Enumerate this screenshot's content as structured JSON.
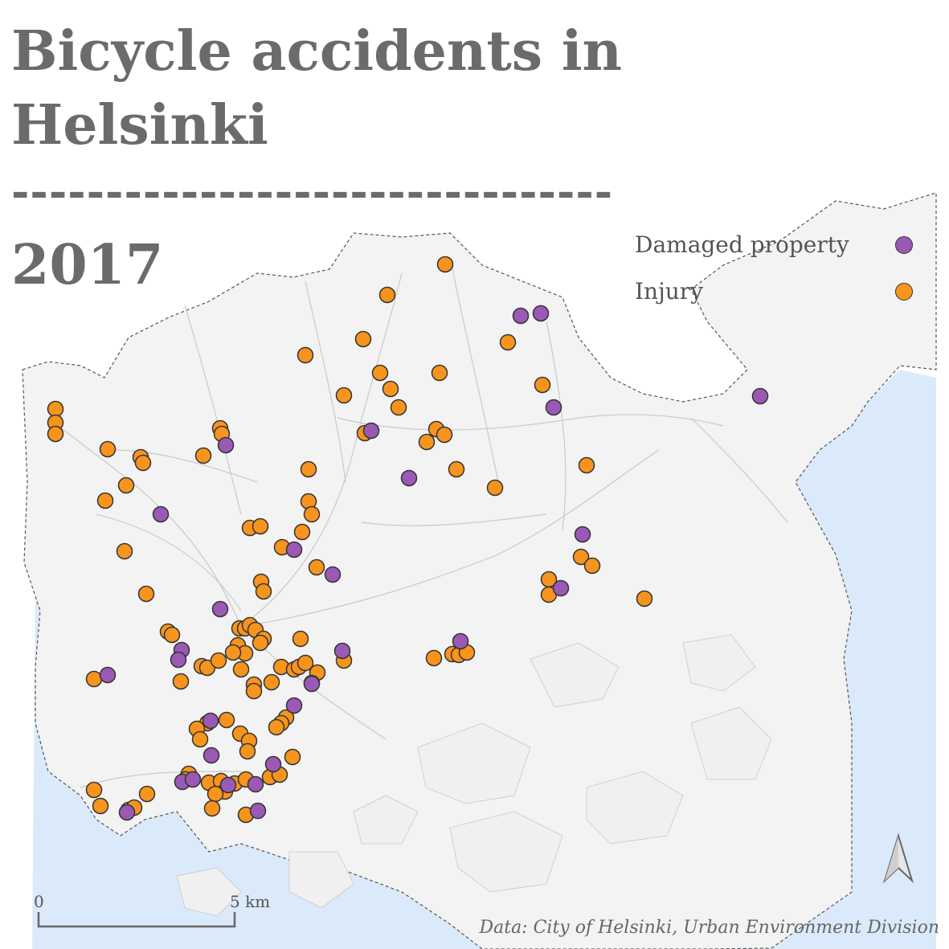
{
  "title_lines": [
    "Bicycle accidents in",
    "Helsinki"
  ],
  "divider": "--------------------------------",
  "year": "2017",
  "legend": [
    {
      "label": "Damaged property",
      "color": "#9b59b6",
      "category": "damaged"
    },
    {
      "label": "Injury",
      "color": "#f7941d",
      "category": "injury"
    }
  ],
  "scale": {
    "start": "0",
    "end": "5 km"
  },
  "credit": "Data: City of Helsinki, Urban Environment Division",
  "colors": {
    "land": "#f4f4f4",
    "sea": "#dbeafa",
    "text": "#6b6b6b",
    "marker_stroke": "#333333"
  },
  "icons": {
    "north_arrow": "north-arrow-icon"
  }
}
